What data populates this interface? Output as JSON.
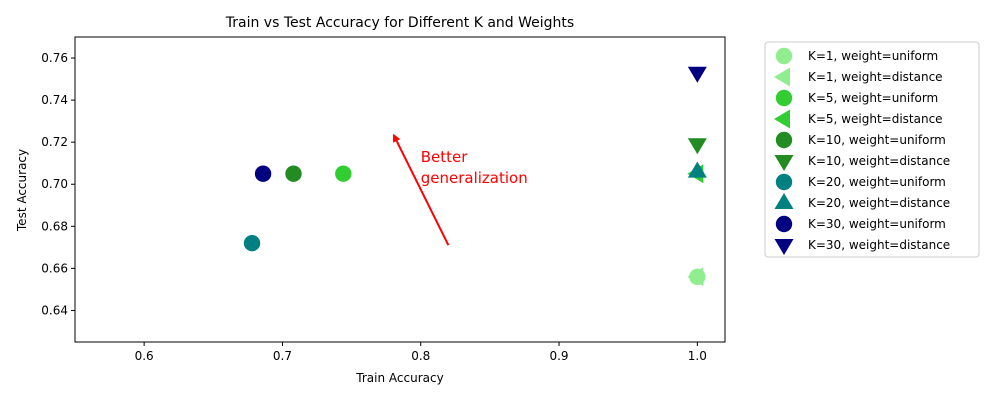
{
  "chart_data": {
    "type": "scatter",
    "title": "Train vs Test Accuracy for Different K and Weights",
    "xlabel": "Train Accuracy",
    "ylabel": "Test Accuracy",
    "xlim": [
      0.55,
      1.02
    ],
    "ylim": [
      0.625,
      0.77
    ],
    "xticks": [
      0.6,
      0.7,
      0.8,
      0.9,
      1.0
    ],
    "xtick_labels": [
      "0.6",
      "0.7",
      "0.8",
      "0.9",
      "1.0"
    ],
    "yticks": [
      0.64,
      0.66,
      0.68,
      0.7,
      0.72,
      0.74,
      0.76
    ],
    "ytick_labels": [
      "0.64",
      "0.66",
      "0.68",
      "0.70",
      "0.72",
      "0.74",
      "0.76"
    ],
    "grid": false,
    "legend_position": "outside-right",
    "series": [
      {
        "name": "K=1, weight=uniform",
        "marker": "circle",
        "color": "#90ee90",
        "x": 1.0,
        "y": 0.656
      },
      {
        "name": "K=1, weight=distance",
        "marker": "triangle-left",
        "color": "#90ee90",
        "x": 1.0,
        "y": 0.656
      },
      {
        "name": "K=5, weight=uniform",
        "marker": "circle",
        "color": "#32cd32",
        "x": 0.744,
        "y": 0.705
      },
      {
        "name": "K=5, weight=distance",
        "marker": "triangle-left",
        "color": "#32cd32",
        "x": 1.0,
        "y": 0.705
      },
      {
        "name": "K=10, weight=uniform",
        "marker": "circle",
        "color": "#228b22",
        "x": 0.708,
        "y": 0.705
      },
      {
        "name": "K=10, weight=distance",
        "marker": "triangle-down",
        "color": "#228b22",
        "x": 1.0,
        "y": 0.719
      },
      {
        "name": "K=20, weight=uniform",
        "marker": "circle",
        "color": "#008080",
        "x": 0.678,
        "y": 0.672
      },
      {
        "name": "K=20, weight=distance",
        "marker": "triangle-up",
        "color": "#008080",
        "x": 1.0,
        "y": 0.706
      },
      {
        "name": "K=30, weight=uniform",
        "marker": "circle",
        "color": "#000080",
        "x": 0.686,
        "y": 0.705
      },
      {
        "name": "K=30, weight=distance",
        "marker": "triangle-down",
        "color": "#000080",
        "x": 1.0,
        "y": 0.753
      }
    ],
    "annotation": {
      "text_lines": [
        "Better",
        "generalization"
      ],
      "color": "#ff0000",
      "text_x": 0.8,
      "text_y": 0.7
    },
    "arrow": {
      "from": [
        0.82,
        0.671
      ],
      "to": [
        0.78,
        0.724
      ],
      "color": "#ff0000"
    }
  }
}
